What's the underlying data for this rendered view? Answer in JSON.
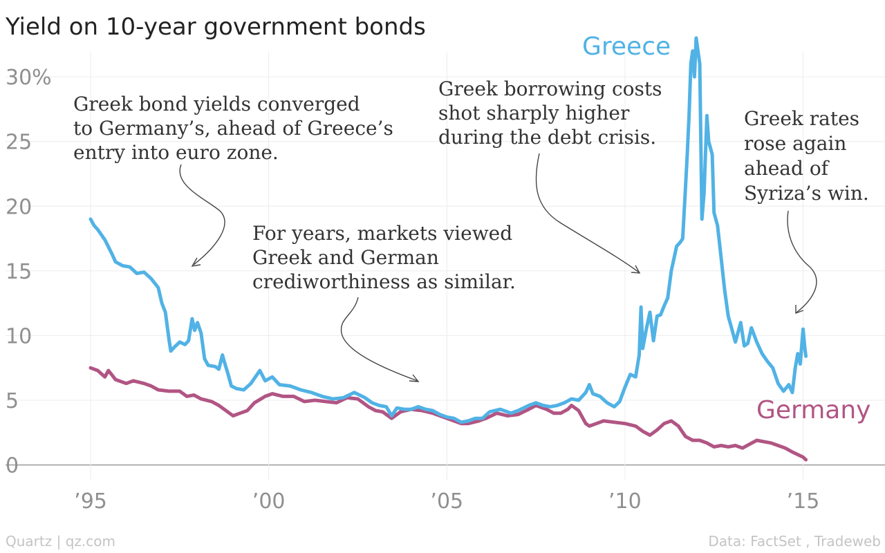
{
  "chart_data": {
    "type": "line",
    "title": "Yield on 10-year government bonds",
    "xlabel": "",
    "ylabel": "",
    "xlim": [
      1993,
      2017.3
    ],
    "ylim": [
      -2,
      33
    ],
    "x_ticks": [
      {
        "value": 1995,
        "label": "’95"
      },
      {
        "value": 2000,
        "label": "’00"
      },
      {
        "value": 2005,
        "label": "’05"
      },
      {
        "value": 2010,
        "label": "’10"
      },
      {
        "value": 2015,
        "label": "’15"
      }
    ],
    "y_ticks": [
      {
        "value": 0,
        "label": "0"
      },
      {
        "value": 5,
        "label": "5"
      },
      {
        "value": 10,
        "label": "10"
      },
      {
        "value": 15,
        "label": "15"
      },
      {
        "value": 20,
        "label": "20"
      },
      {
        "value": 25,
        "label": "25"
      },
      {
        "value": 30,
        "label": "30%"
      }
    ],
    "grid": true,
    "series": [
      {
        "name": "Greece",
        "color": "#51b2e5",
        "points": [
          [
            1995.0,
            19.0
          ],
          [
            1995.1,
            18.5
          ],
          [
            1995.2,
            18.2
          ],
          [
            1995.4,
            17.4
          ],
          [
            1995.6,
            16.3
          ],
          [
            1995.7,
            15.7
          ],
          [
            1995.9,
            15.4
          ],
          [
            1996.1,
            15.3
          ],
          [
            1996.3,
            14.8
          ],
          [
            1996.5,
            14.9
          ],
          [
            1996.7,
            14.4
          ],
          [
            1996.9,
            13.7
          ],
          [
            1997.0,
            12.5
          ],
          [
            1997.1,
            11.8
          ],
          [
            1997.2,
            9.7
          ],
          [
            1997.25,
            8.8
          ],
          [
            1997.35,
            9.1
          ],
          [
            1997.5,
            9.5
          ],
          [
            1997.65,
            9.3
          ],
          [
            1997.75,
            9.6
          ],
          [
            1997.85,
            11.3
          ],
          [
            1997.92,
            10.4
          ],
          [
            1998.0,
            11.0
          ],
          [
            1998.1,
            10.2
          ],
          [
            1998.2,
            8.2
          ],
          [
            1998.3,
            7.7
          ],
          [
            1998.5,
            7.6
          ],
          [
            1998.6,
            7.4
          ],
          [
            1998.7,
            8.5
          ],
          [
            1998.75,
            8.0
          ],
          [
            1998.85,
            7.1
          ],
          [
            1998.95,
            6.1
          ],
          [
            1999.1,
            5.9
          ],
          [
            1999.3,
            5.8
          ],
          [
            1999.5,
            6.3
          ],
          [
            1999.75,
            7.3
          ],
          [
            1999.9,
            6.5
          ],
          [
            2000.1,
            6.8
          ],
          [
            2000.3,
            6.2
          ],
          [
            2000.6,
            6.1
          ],
          [
            2000.9,
            5.8
          ],
          [
            2001.2,
            5.6
          ],
          [
            2001.5,
            5.3
          ],
          [
            2001.8,
            5.1
          ],
          [
            2002.1,
            5.2
          ],
          [
            2002.4,
            5.6
          ],
          [
            2002.7,
            5.2
          ],
          [
            2002.9,
            4.8
          ],
          [
            2003.1,
            4.6
          ],
          [
            2003.3,
            4.5
          ],
          [
            2003.45,
            3.8
          ],
          [
            2003.6,
            4.4
          ],
          [
            2003.8,
            4.3
          ],
          [
            2004.0,
            4.3
          ],
          [
            2004.2,
            4.5
          ],
          [
            2004.4,
            4.3
          ],
          [
            2004.6,
            4.2
          ],
          [
            2004.8,
            3.9
          ],
          [
            2005.0,
            3.7
          ],
          [
            2005.2,
            3.6
          ],
          [
            2005.4,
            3.3
          ],
          [
            2005.6,
            3.4
          ],
          [
            2005.8,
            3.6
          ],
          [
            2006.0,
            3.6
          ],
          [
            2006.2,
            4.1
          ],
          [
            2006.5,
            4.3
          ],
          [
            2006.8,
            4.0
          ],
          [
            2007.0,
            4.2
          ],
          [
            2007.3,
            4.6
          ],
          [
            2007.5,
            4.8
          ],
          [
            2007.7,
            4.6
          ],
          [
            2007.9,
            4.5
          ],
          [
            2008.1,
            4.6
          ],
          [
            2008.3,
            4.8
          ],
          [
            2008.5,
            5.1
          ],
          [
            2008.7,
            5.0
          ],
          [
            2008.9,
            5.6
          ],
          [
            2009.0,
            6.2
          ],
          [
            2009.1,
            5.5
          ],
          [
            2009.3,
            5.3
          ],
          [
            2009.5,
            4.8
          ],
          [
            2009.7,
            4.5
          ],
          [
            2009.85,
            4.9
          ],
          [
            2010.0,
            6.0
          ],
          [
            2010.15,
            7.0
          ],
          [
            2010.3,
            6.8
          ],
          [
            2010.4,
            8.5
          ],
          [
            2010.45,
            12.2
          ],
          [
            2010.5,
            9.0
          ],
          [
            2010.6,
            10.5
          ],
          [
            2010.7,
            11.8
          ],
          [
            2010.8,
            9.6
          ],
          [
            2010.9,
            11.5
          ],
          [
            2011.0,
            11.6
          ],
          [
            2011.1,
            12.3
          ],
          [
            2011.2,
            12.9
          ],
          [
            2011.3,
            15.0
          ],
          [
            2011.45,
            16.9
          ],
          [
            2011.55,
            17.2
          ],
          [
            2011.62,
            17.5
          ],
          [
            2011.7,
            21.5
          ],
          [
            2011.75,
            24.0
          ],
          [
            2011.8,
            27.0
          ],
          [
            2011.85,
            31.0
          ],
          [
            2011.9,
            32.0
          ],
          [
            2011.95,
            30.0
          ],
          [
            2012.0,
            33.0
          ],
          [
            2012.05,
            32.0
          ],
          [
            2012.1,
            31.0
          ],
          [
            2012.16,
            19.0
          ],
          [
            2012.22,
            21.0
          ],
          [
            2012.3,
            27.0
          ],
          [
            2012.35,
            25.0
          ],
          [
            2012.45,
            24.0
          ],
          [
            2012.5,
            19.5
          ],
          [
            2012.6,
            18.5
          ],
          [
            2012.7,
            16.0
          ],
          [
            2012.8,
            13.5
          ],
          [
            2012.9,
            11.5
          ],
          [
            2013.0,
            10.5
          ],
          [
            2013.1,
            9.5
          ],
          [
            2013.25,
            11.0
          ],
          [
            2013.35,
            9.2
          ],
          [
            2013.45,
            9.4
          ],
          [
            2013.55,
            10.6
          ],
          [
            2013.7,
            9.5
          ],
          [
            2013.85,
            8.6
          ],
          [
            2014.0,
            8.0
          ],
          [
            2014.15,
            7.5
          ],
          [
            2014.3,
            6.3
          ],
          [
            2014.45,
            5.7
          ],
          [
            2014.6,
            6.2
          ],
          [
            2014.7,
            5.6
          ],
          [
            2014.78,
            7.5
          ],
          [
            2014.85,
            8.6
          ],
          [
            2014.92,
            7.8
          ],
          [
            2015.0,
            10.5
          ],
          [
            2015.05,
            9.0
          ],
          [
            2015.08,
            8.4
          ]
        ]
      },
      {
        "name": "Germany",
        "color": "#b15584",
        "points": [
          [
            1995.0,
            7.5
          ],
          [
            1995.2,
            7.3
          ],
          [
            1995.4,
            6.8
          ],
          [
            1995.5,
            7.3
          ],
          [
            1995.7,
            6.6
          ],
          [
            1996.0,
            6.3
          ],
          [
            1996.2,
            6.5
          ],
          [
            1996.5,
            6.3
          ],
          [
            1996.7,
            6.1
          ],
          [
            1996.9,
            5.8
          ],
          [
            1997.2,
            5.7
          ],
          [
            1997.5,
            5.7
          ],
          [
            1997.7,
            5.3
          ],
          [
            1997.9,
            5.4
          ],
          [
            1998.1,
            5.1
          ],
          [
            1998.4,
            4.9
          ],
          [
            1998.6,
            4.6
          ],
          [
            1998.8,
            4.2
          ],
          [
            1999.0,
            3.8
          ],
          [
            1999.2,
            4.0
          ],
          [
            1999.4,
            4.2
          ],
          [
            1999.6,
            4.8
          ],
          [
            1999.9,
            5.3
          ],
          [
            2000.1,
            5.5
          ],
          [
            2000.4,
            5.3
          ],
          [
            2000.7,
            5.3
          ],
          [
            2001.0,
            4.9
          ],
          [
            2001.3,
            5.0
          ],
          [
            2001.6,
            4.9
          ],
          [
            2001.9,
            4.8
          ],
          [
            2002.2,
            5.2
          ],
          [
            2002.5,
            5.1
          ],
          [
            2002.8,
            4.5
          ],
          [
            2003.0,
            4.2
          ],
          [
            2003.2,
            4.1
          ],
          [
            2003.45,
            3.6
          ],
          [
            2003.7,
            4.1
          ],
          [
            2004.0,
            4.3
          ],
          [
            2004.3,
            4.2
          ],
          [
            2004.6,
            4.0
          ],
          [
            2004.9,
            3.7
          ],
          [
            2005.2,
            3.4
          ],
          [
            2005.4,
            3.2
          ],
          [
            2005.6,
            3.2
          ],
          [
            2005.9,
            3.4
          ],
          [
            2006.1,
            3.6
          ],
          [
            2006.4,
            4.0
          ],
          [
            2006.7,
            3.8
          ],
          [
            2007.0,
            3.9
          ],
          [
            2007.3,
            4.3
          ],
          [
            2007.5,
            4.6
          ],
          [
            2007.8,
            4.3
          ],
          [
            2008.0,
            4.0
          ],
          [
            2008.2,
            4.0
          ],
          [
            2008.4,
            4.3
          ],
          [
            2008.5,
            4.6
          ],
          [
            2008.7,
            4.2
          ],
          [
            2008.9,
            3.2
          ],
          [
            2009.0,
            3.0
          ],
          [
            2009.2,
            3.2
          ],
          [
            2009.4,
            3.4
          ],
          [
            2009.7,
            3.3
          ],
          [
            2010.0,
            3.2
          ],
          [
            2010.3,
            3.0
          ],
          [
            2010.5,
            2.6
          ],
          [
            2010.7,
            2.3
          ],
          [
            2010.9,
            2.7
          ],
          [
            2011.1,
            3.2
          ],
          [
            2011.3,
            3.4
          ],
          [
            2011.5,
            3.0
          ],
          [
            2011.7,
            2.2
          ],
          [
            2011.9,
            1.9
          ],
          [
            2012.1,
            1.9
          ],
          [
            2012.3,
            1.7
          ],
          [
            2012.5,
            1.4
          ],
          [
            2012.7,
            1.5
          ],
          [
            2012.9,
            1.4
          ],
          [
            2013.1,
            1.5
          ],
          [
            2013.3,
            1.3
          ],
          [
            2013.5,
            1.6
          ],
          [
            2013.7,
            1.9
          ],
          [
            2013.9,
            1.8
          ],
          [
            2014.1,
            1.7
          ],
          [
            2014.3,
            1.5
          ],
          [
            2014.5,
            1.3
          ],
          [
            2014.7,
            1.0
          ],
          [
            2014.85,
            0.8
          ],
          [
            2015.0,
            0.6
          ],
          [
            2015.08,
            0.4
          ]
        ]
      }
    ],
    "series_labels": [
      {
        "series": "Greece",
        "text": "Greece"
      },
      {
        "series": "Germany",
        "text": "Germany"
      }
    ],
    "annotations": [
      {
        "id": "convergence",
        "lines": [
          "Greek bond yields converged",
          "to Germany’s, ahead of Greece’s",
          "entry into euro zone."
        ]
      },
      {
        "id": "similar",
        "lines": [
          "For years, markets viewed",
          "Greek and German",
          "crediworthiness as similar."
        ]
      },
      {
        "id": "crisis",
        "lines": [
          "Greek borrowing costs",
          "shot sharply higher",
          "during the debt crisis."
        ]
      },
      {
        "id": "syriza",
        "lines": [
          "Greek rates",
          "rose again",
          "ahead of",
          "Syriza’s win."
        ]
      }
    ]
  },
  "footer": {
    "source_left": "Quartz | qz.com",
    "source_right": "Data: FactSet , Tradeweb"
  }
}
